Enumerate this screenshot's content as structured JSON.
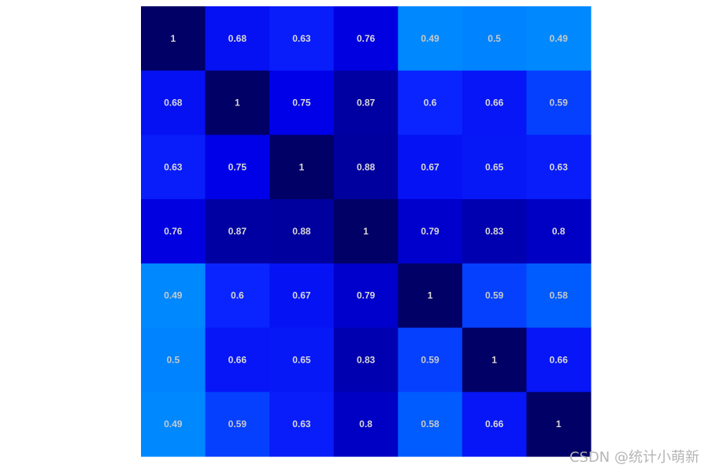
{
  "chart_data": {
    "type": "heatmap",
    "matrix": [
      [
        1,
        0.68,
        0.63,
        0.76,
        0.49,
        0.5,
        0.49
      ],
      [
        0.68,
        1,
        0.75,
        0.87,
        0.6,
        0.66,
        0.59
      ],
      [
        0.63,
        0.75,
        1,
        0.88,
        0.67,
        0.65,
        0.63
      ],
      [
        0.76,
        0.87,
        0.88,
        1,
        0.79,
        0.83,
        0.8
      ],
      [
        0.49,
        0.6,
        0.67,
        0.79,
        1,
        0.59,
        0.58
      ],
      [
        0.5,
        0.66,
        0.65,
        0.83,
        0.59,
        1,
        0.66
      ],
      [
        0.49,
        0.59,
        0.63,
        0.8,
        0.58,
        0.66,
        1
      ]
    ],
    "value_range": [
      0.49,
      1
    ],
    "color_scale": [
      {
        "value": 0.49,
        "color": "#0088ff"
      },
      {
        "value": 0.58,
        "color": "#005cff"
      },
      {
        "value": 0.6,
        "color": "#0a24ff"
      },
      {
        "value": 0.75,
        "color": "#0000e8"
      },
      {
        "value": 0.83,
        "color": "#0000b0"
      },
      {
        "value": 0.88,
        "color": "#00009e"
      },
      {
        "value": 1,
        "color": "#000066"
      }
    ],
    "label_colors": {
      "light_cell": "#c8c8c8",
      "dark_cell": "#d8d8d8"
    },
    "grid": false,
    "legend": "none"
  },
  "watermark": {
    "text": "CSDN @统计小萌新"
  }
}
